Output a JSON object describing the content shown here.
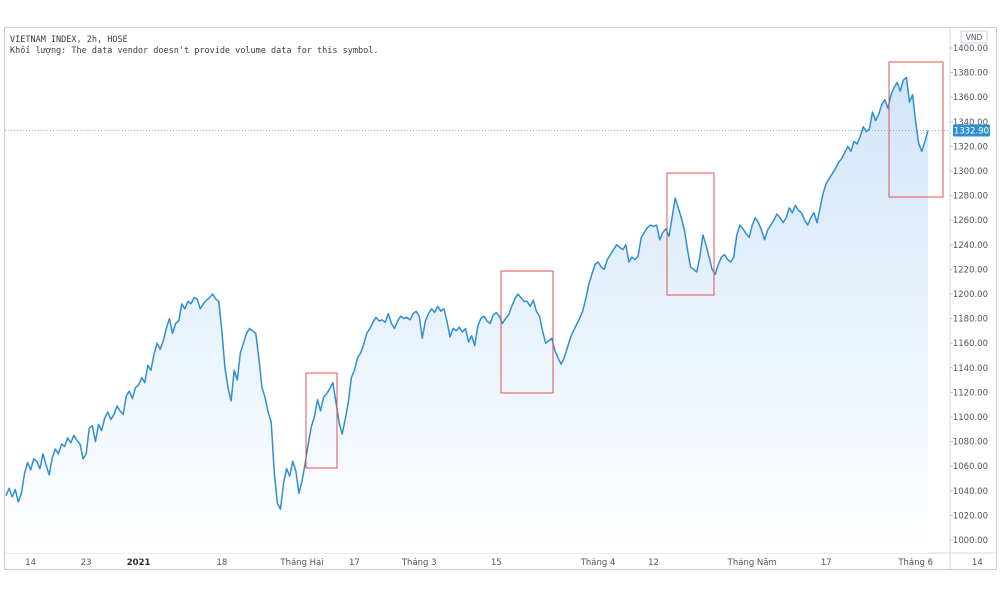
{
  "header": {
    "title": "VIETNAM INDEX, 2h, HOSE",
    "volume_note": "Khối lượng: The data vendor doesn't provide volume data for this symbol."
  },
  "currency_label": "VND",
  "current_value_label": "1332.90",
  "colors": {
    "line": "#2f8fd0",
    "area_top": "#cfe4f8",
    "area_bottom": "#ffffff",
    "highlight_box": "#e05252",
    "current_box": "#2f8fd0",
    "axis_text": "#50535e"
  },
  "chart_data": {
    "type": "area",
    "title": "",
    "xlabel": "",
    "ylabel": "",
    "ylim": [
      990,
      1410
    ],
    "y_ticks": [
      1000,
      1020,
      1040,
      1060,
      1080,
      1100,
      1120,
      1140,
      1160,
      1180,
      1200,
      1220,
      1240,
      1260,
      1280,
      1300,
      1320,
      1340,
      1360,
      1380,
      1400
    ],
    "x_ticks": [
      {
        "label": "14",
        "index": 8,
        "bold": false
      },
      {
        "label": "23",
        "index": 26,
        "bold": false
      },
      {
        "label": "2021",
        "index": 43,
        "bold": true
      },
      {
        "label": "18",
        "index": 70,
        "bold": false
      },
      {
        "label": "Tháng Hai",
        "index": 96,
        "bold": false
      },
      {
        "label": "17",
        "index": 113,
        "bold": false
      },
      {
        "label": "Tháng 3",
        "index": 134,
        "bold": false
      },
      {
        "label": "15",
        "index": 159,
        "bold": false
      },
      {
        "label": "Tháng 4",
        "index": 192,
        "bold": false
      },
      {
        "label": "12",
        "index": 210,
        "bold": false
      },
      {
        "label": "Tháng Năm",
        "index": 242,
        "bold": false
      },
      {
        "label": "17",
        "index": 266,
        "bold": false
      },
      {
        "label": "Tháng 6",
        "index": 295,
        "bold": false
      },
      {
        "label": "14",
        "index": 315,
        "bold": false
      }
    ],
    "current_value": 1332.9,
    "series": [
      {
        "values": [
          1036,
          1042,
          1035,
          1041,
          1031,
          1038,
          1054,
          1063,
          1057,
          1066,
          1064,
          1058,
          1070,
          1061,
          1053,
          1067,
          1074,
          1070,
          1078,
          1076,
          1083,
          1079,
          1085,
          1081,
          1078,
          1066,
          1070,
          1091,
          1093,
          1080,
          1094,
          1089,
          1099,
          1104,
          1098,
          1102,
          1109,
          1105,
          1102,
          1117,
          1121,
          1115,
          1124,
          1126,
          1132,
          1128,
          1142,
          1138,
          1151,
          1160,
          1155,
          1162,
          1172,
          1180,
          1168,
          1176,
          1178,
          1192,
          1188,
          1194,
          1192,
          1197,
          1196,
          1188,
          1192,
          1195,
          1197,
          1200,
          1196,
          1194,
          1170,
          1140,
          1124,
          1113,
          1138,
          1130,
          1152,
          1160,
          1168,
          1172,
          1170,
          1168,
          1148,
          1124,
          1116,
          1104,
          1096,
          1055,
          1030,
          1025,
          1046,
          1058,
          1052,
          1064,
          1056,
          1038,
          1048,
          1062,
          1078,
          1092,
          1100,
          1114,
          1105,
          1116,
          1119,
          1123,
          1128,
          1112,
          1096,
          1086,
          1098,
          1112,
          1132,
          1138,
          1148,
          1152,
          1159,
          1168,
          1172,
          1177,
          1181,
          1178,
          1179,
          1177,
          1184,
          1176,
          1172,
          1178,
          1182,
          1180,
          1181,
          1179,
          1184,
          1186,
          1182,
          1164,
          1178,
          1184,
          1188,
          1185,
          1190,
          1186,
          1188,
          1178,
          1165,
          1172,
          1170,
          1173,
          1169,
          1172,
          1161,
          1166,
          1158,
          1174,
          1180,
          1182,
          1178,
          1176,
          1183,
          1185,
          1182,
          1176,
          1180,
          1183,
          1190,
          1196,
          1200,
          1197,
          1194,
          1194,
          1190,
          1195,
          1186,
          1182,
          1170,
          1160,
          1162,
          1164,
          1154,
          1148,
          1143,
          1148,
          1156,
          1164,
          1170,
          1175,
          1180,
          1186,
          1196,
          1208,
          1216,
          1224,
          1226,
          1222,
          1220,
          1228,
          1232,
          1236,
          1240,
          1238,
          1236,
          1240,
          1226,
          1230,
          1228,
          1231,
          1246,
          1250,
          1254,
          1256,
          1255,
          1256,
          1244,
          1250,
          1253,
          1247,
          1262,
          1278,
          1270,
          1262,
          1252,
          1236,
          1222,
          1220,
          1218,
          1230,
          1248,
          1240,
          1230,
          1220,
          1216,
          1224,
          1230,
          1232,
          1228,
          1226,
          1230,
          1248,
          1256,
          1253,
          1249,
          1246,
          1256,
          1262,
          1258,
          1252,
          1244,
          1252,
          1256,
          1260,
          1265,
          1262,
          1258,
          1262,
          1270,
          1266,
          1272,
          1268,
          1266,
          1260,
          1256,
          1262,
          1266,
          1258,
          1270,
          1282,
          1290,
          1294,
          1298,
          1302,
          1307,
          1310,
          1315,
          1320,
          1316,
          1324,
          1322,
          1328,
          1336,
          1332,
          1334,
          1348,
          1341,
          1346,
          1354,
          1358,
          1351,
          1362,
          1368,
          1372,
          1365,
          1374,
          1376,
          1356,
          1362,
          1340,
          1322,
          1316,
          1324,
          1332.9
        ]
      }
    ]
  }
}
